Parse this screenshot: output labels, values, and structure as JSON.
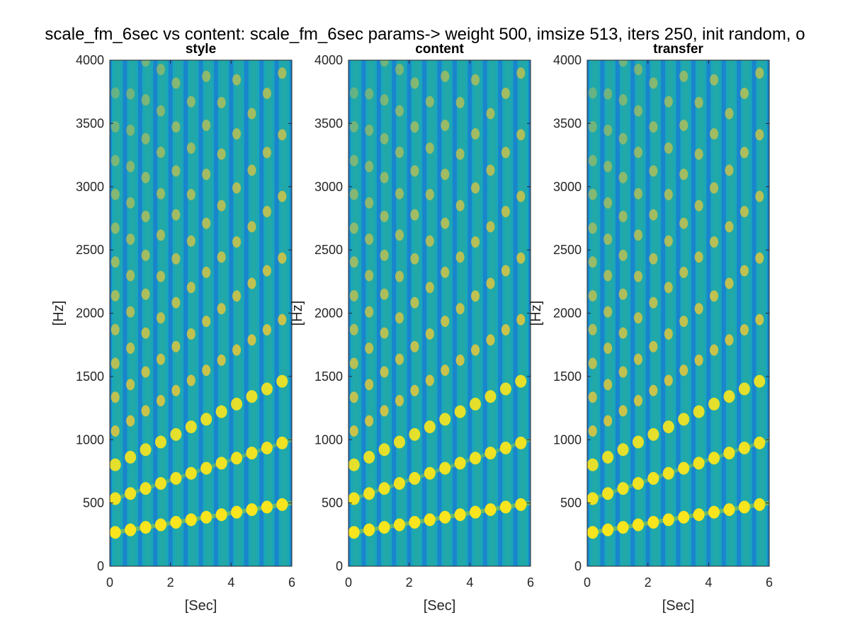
{
  "chart_data": {
    "type": "heatmap",
    "suptitle": "scale_fm_6sec vs content: scale_fm_6sec  params-> weight 500, imsize 513, iters 250, init random, o",
    "panels": [
      {
        "title": "style",
        "xlabel": "[Sec]",
        "ylabel": "[Hz]"
      },
      {
        "title": "content",
        "xlabel": "[Sec]",
        "ylabel": "[Hz]"
      },
      {
        "title": "transfer",
        "xlabel": "[Sec]",
        "ylabel": "[Hz]"
      }
    ],
    "xlim": [
      0,
      6
    ],
    "ylim": [
      0,
      4000
    ],
    "xticks": [
      0,
      2,
      4,
      6
    ],
    "yticks": [
      0,
      500,
      1000,
      1500,
      2000,
      2500,
      3000,
      3500,
      4000
    ],
    "notes": {
      "onset_interval_sec": 0.5,
      "num_tones": 12,
      "fundamental_start_hz": 260,
      "fundamental_end_hz": 500,
      "harmonics": 16
    },
    "colors": {
      "background": "#1aa7b7",
      "vertical_gap": "#1a7fd0",
      "low_harmonic": "#f9e51e",
      "high_harmonic": "#e8c83a"
    }
  }
}
